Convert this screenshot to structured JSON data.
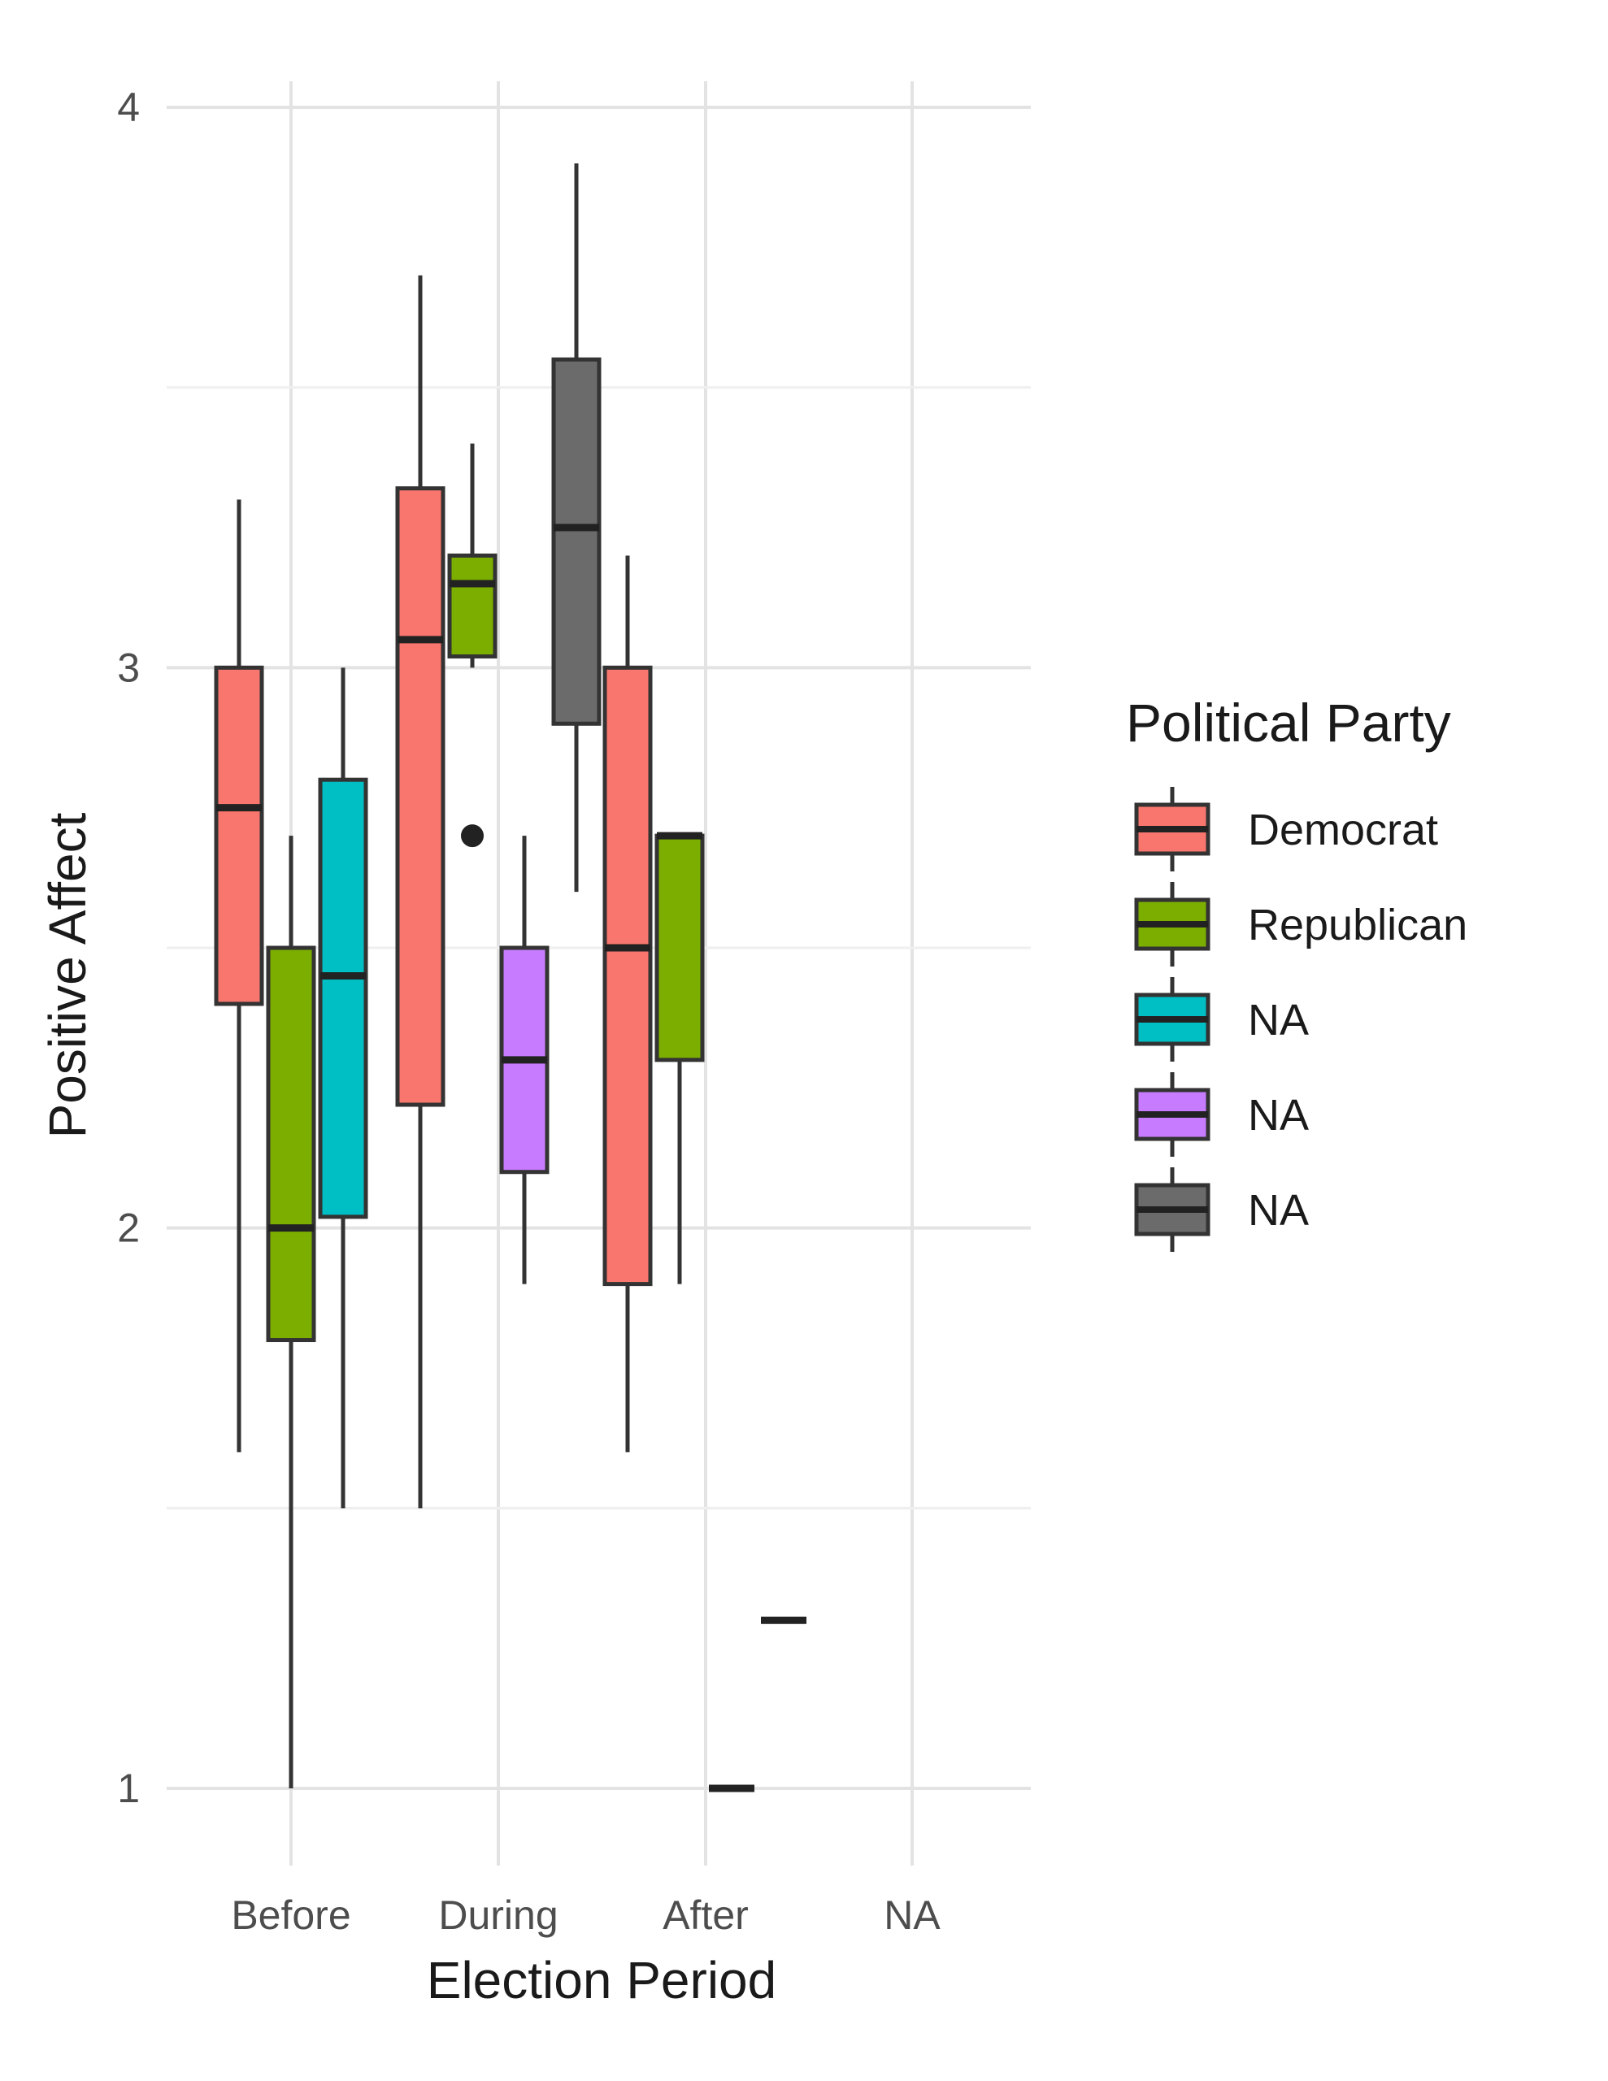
{
  "chart_data": {
    "type": "boxplot",
    "title": "",
    "xlabel": "Election Period",
    "ylabel": "Positive Affect",
    "categories": [
      "Before",
      "During",
      "After",
      "NA"
    ],
    "ylim": [
      0.9,
      4.1
    ],
    "yticks": [
      1,
      2,
      3,
      4
    ],
    "grid": true,
    "legend": {
      "title": "Political Party",
      "position": "right",
      "entries": [
        {
          "label": "Democrat",
          "color": "#F8766D"
        },
        {
          "label": "Republican",
          "color": "#7CAE00"
        },
        {
          "label": "NA",
          "color": "#00BFC4"
        },
        {
          "label": "NA",
          "color": "#C77CFF"
        },
        {
          "label": "NA",
          "color": "#6B6B6B"
        }
      ]
    },
    "boxes": [
      {
        "category": "Before",
        "group": "Democrat",
        "color": "#F8766D",
        "whisker_low": 1.6,
        "q1": 2.4,
        "median": 2.75,
        "q3": 3.0,
        "whisker_high": 3.3,
        "outliers": []
      },
      {
        "category": "Before",
        "group": "Republican",
        "color": "#7CAE00",
        "whisker_low": 1.0,
        "q1": 1.8,
        "median": 2.0,
        "q3": 2.5,
        "whisker_high": 2.7,
        "outliers": []
      },
      {
        "category": "Before",
        "group": "NA",
        "color": "#00BFC4",
        "whisker_low": 1.5,
        "q1": 2.02,
        "median": 2.45,
        "q3": 2.8,
        "whisker_high": 3.0,
        "outliers": []
      },
      {
        "category": "During",
        "group": "Democrat",
        "color": "#F8766D",
        "whisker_low": 1.5,
        "q1": 2.22,
        "median": 3.05,
        "q3": 3.32,
        "whisker_high": 3.7,
        "outliers": []
      },
      {
        "category": "During",
        "group": "Republican",
        "color": "#7CAE00",
        "whisker_low": 3.0,
        "q1": 3.02,
        "median": 3.15,
        "q3": 3.2,
        "whisker_high": 3.4,
        "outliers": [
          2.7
        ]
      },
      {
        "category": "During",
        "group": "NA",
        "color": "#C77CFF",
        "whisker_low": 1.9,
        "q1": 2.1,
        "median": 2.3,
        "q3": 2.5,
        "whisker_high": 2.7,
        "outliers": []
      },
      {
        "category": "During",
        "group": "NA",
        "color": "#6B6B6B",
        "whisker_low": 2.6,
        "q1": 2.9,
        "median": 3.25,
        "q3": 3.55,
        "whisker_high": 3.9,
        "outliers": []
      },
      {
        "category": "After",
        "group": "Democrat",
        "color": "#F8766D",
        "whisker_low": 1.6,
        "q1": 1.9,
        "median": 2.5,
        "q3": 3.0,
        "whisker_high": 3.2,
        "outliers": []
      },
      {
        "category": "After",
        "group": "Republican",
        "color": "#7CAE00",
        "whisker_low": 1.9,
        "q1": 2.3,
        "median": 2.7,
        "q3": 2.7,
        "whisker_high": 2.7,
        "outliers": []
      },
      {
        "category": "After",
        "group": "NA",
        "color": "#00BFC4",
        "whisker_low": 1.0,
        "q1": 1.0,
        "median": 1.0,
        "q3": 1.0,
        "whisker_high": 1.0,
        "outliers": []
      },
      {
        "category": "After",
        "group": "NA",
        "color": "#C77CFF",
        "whisker_low": 1.3,
        "q1": 1.3,
        "median": 1.3,
        "q3": 1.3,
        "whisker_high": 1.3,
        "outliers": []
      }
    ]
  }
}
